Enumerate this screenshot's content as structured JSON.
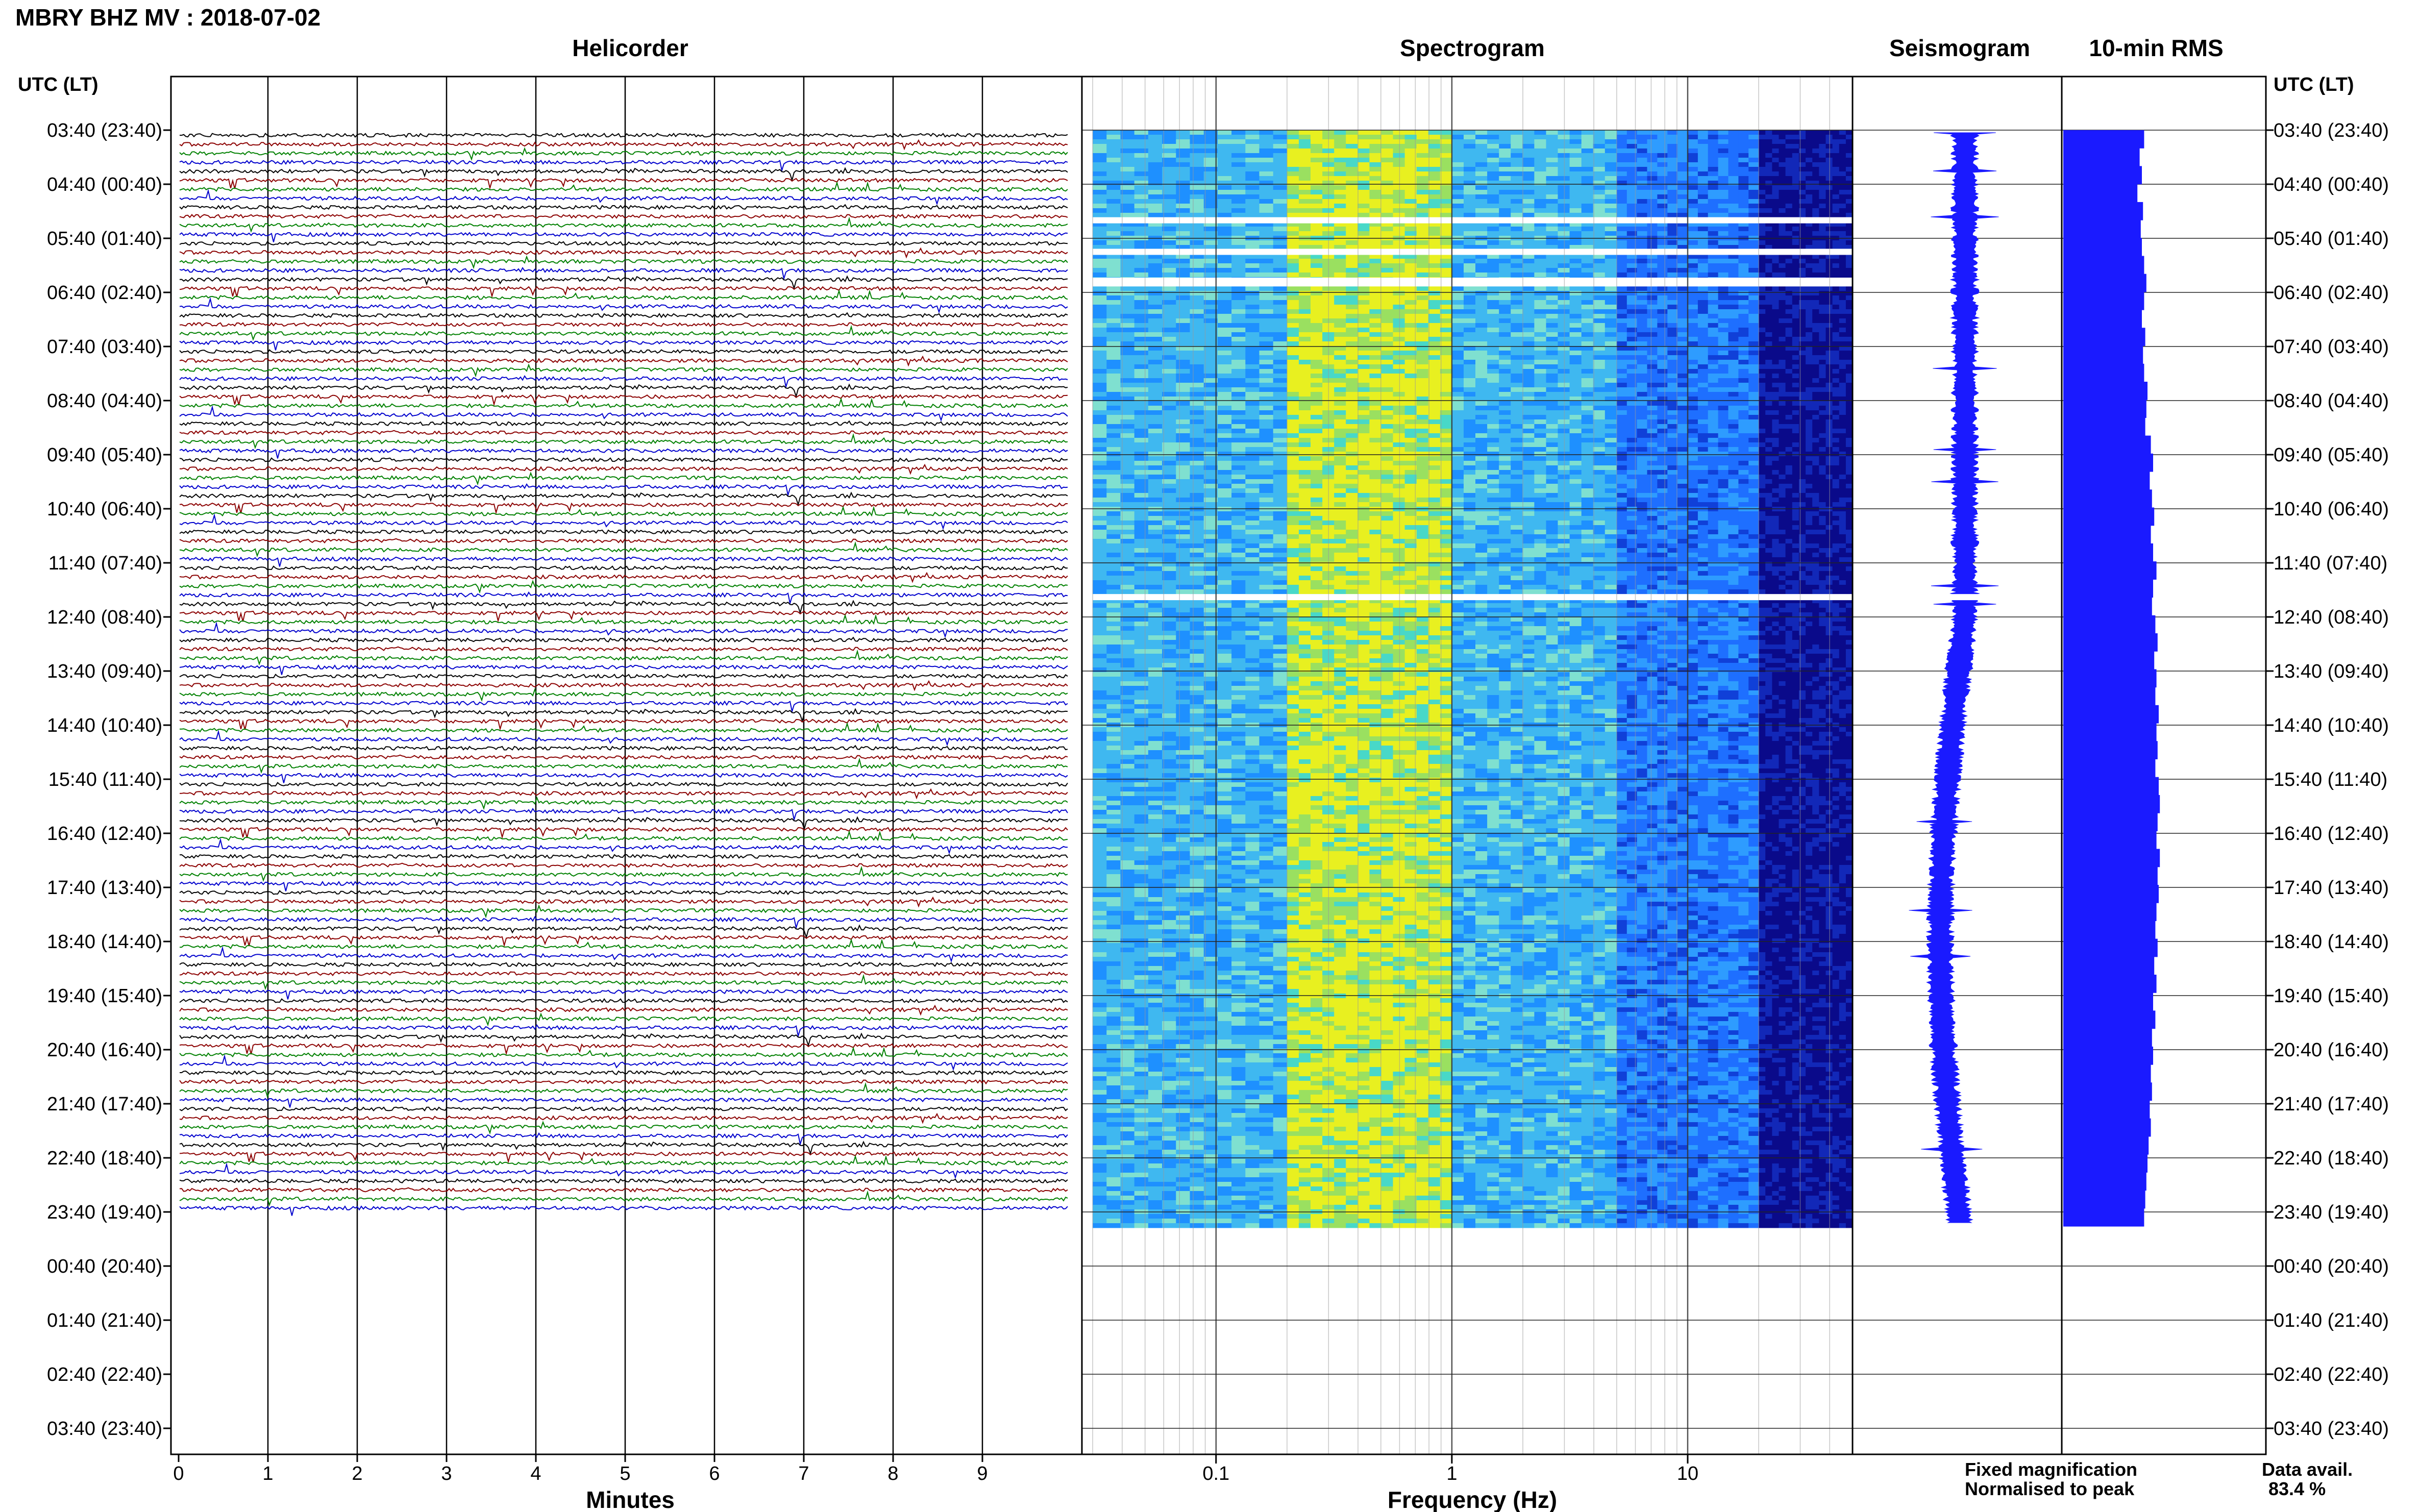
{
  "header": {
    "station_title": "MBRY BHZ MV : 2018-07-02"
  },
  "panels": {
    "helicorder": "Helicorder",
    "spectrogram": "Spectrogram",
    "seismogram": "Seismogram",
    "rms": "10-min RMS"
  },
  "axes": {
    "left_time_label": "UTC (LT)",
    "right_time_label": "UTC (LT)",
    "minutes_label": "Minutes",
    "frequency_label": "Frequency (Hz)"
  },
  "legend": {
    "fixed": "Fixed magnification",
    "normalised": "Normalised to peak",
    "fixed_color": "#1010ff",
    "normalised_color": "#ff1010"
  },
  "data_availability": {
    "label": "Data avail.",
    "value": "83.4 %"
  },
  "colors": {
    "trace_cycle": [
      "#000000",
      "#8b0000",
      "#008000",
      "#0000cd"
    ],
    "rms_fill": "#1a1aff",
    "spectro_low": "#0a0a8a",
    "spectro_mid": "#1e90ff",
    "spectro_high": "#e8f020"
  },
  "chart_data": [
    {
      "type": "line",
      "title": "Helicorder",
      "xlabel": "Minutes",
      "x_ticks": [
        "0",
        "1",
        "2",
        "3",
        "4",
        "5",
        "6",
        "7",
        "8",
        "9"
      ],
      "y_ticks": [
        "03:40 (23:40)",
        "04:40 (00:40)",
        "05:40 (01:40)",
        "06:40 (02:40)",
        "07:40 (03:40)",
        "08:40 (04:40)",
        "09:40 (05:40)",
        "10:40 (06:40)",
        "11:40 (07:40)",
        "12:40 (08:40)",
        "13:40 (09:40)",
        "14:40 (10:40)",
        "15:40 (11:40)",
        "16:40 (12:40)",
        "17:40 (13:40)",
        "18:40 (14:40)",
        "19:40 (15:40)",
        "20:40 (16:40)",
        "21:40 (17:40)",
        "22:40 (18:40)",
        "23:40 (19:40)",
        "00:40 (20:40)",
        "01:40 (21:40)",
        "02:40 (22:40)",
        "03:40 (23:40)"
      ],
      "xlim": [
        0,
        10
      ],
      "trace_start": "03:40 (23:40)",
      "trace_end": "23:40 (19:40)"
    },
    {
      "type": "heatmap",
      "title": "Spectrogram",
      "xlabel": "Frequency (Hz)",
      "x_scale": "log",
      "x_ticks": [
        "0.1",
        "1",
        "10"
      ],
      "xlim": [
        0.03,
        50
      ],
      "bands": [
        {
          "from_hz": 0.03,
          "to_hz": 0.2,
          "intensity": "mid"
        },
        {
          "from_hz": 0.2,
          "to_hz": 1.0,
          "intensity": "high"
        },
        {
          "from_hz": 1.0,
          "to_hz": 5.0,
          "intensity": "mid"
        },
        {
          "from_hz": 5.0,
          "to_hz": 20.0,
          "intensity": "mid-low"
        },
        {
          "from_hz": 20.0,
          "to_hz": 50.0,
          "intensity": "low"
        }
      ],
      "gaps_utc": [
        "05:20",
        "05:55",
        "06:27",
        "06:30",
        "12:18"
      ]
    },
    {
      "type": "line",
      "title": "Seismogram"
    },
    {
      "type": "bar",
      "title": "10-min RMS",
      "values": [
        0.72,
        0.68,
        0.7,
        0.66,
        0.71,
        0.69,
        0.7,
        0.72,
        0.74,
        0.72,
        0.7,
        0.73,
        0.71,
        0.72,
        0.75,
        0.74,
        0.73,
        0.78,
        0.8,
        0.77,
        0.79,
        0.81,
        0.78,
        0.8,
        0.83,
        0.8,
        0.79,
        0.82,
        0.84,
        0.81,
        0.83,
        0.82,
        0.85,
        0.83,
        0.84,
        0.82,
        0.85,
        0.86,
        0.84,
        0.83,
        0.86,
        0.84,
        0.85,
        0.83,
        0.82,
        0.84,
        0.81,
        0.83,
        0.8,
        0.82,
        0.79,
        0.8,
        0.78,
        0.79,
        0.77,
        0.78,
        0.76,
        0.75,
        0.74,
        0.73,
        0.72
      ]
    }
  ]
}
